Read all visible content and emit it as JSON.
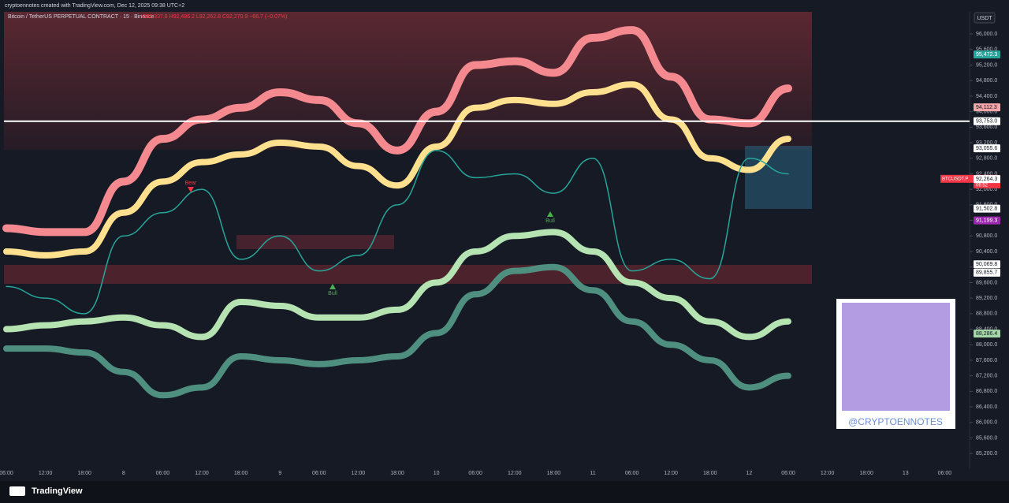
{
  "header": {
    "credit": "cryptoennotes created with TradingView.com, Dec 12, 2025 09:38 UTC+2",
    "symbol": "Bitcoin / TetherUS PERPETUAL CONTRACT · 15 · Binance",
    "ohlc": "O92,337.6 H92,486.2 L92,262.8 C92,270.9 −66.7 (−0.07%)",
    "currency": "USDT"
  },
  "footer": {
    "brand": "TradingView"
  },
  "qr": {
    "handle": "@CRYPTOENNOTES"
  },
  "chart_data": {
    "type": "line",
    "categories": [
      "06:00",
      "12:00",
      "18:00",
      "8",
      "06:00",
      "12:00",
      "18:00",
      "9",
      "06:00",
      "12:00",
      "18:00",
      "10",
      "06:00",
      "12:00",
      "18:00",
      "11",
      "06:00",
      "12:00",
      "18:00",
      "12",
      "06:00",
      "12:00",
      "18:00",
      "13",
      "06:00"
    ],
    "series": [
      {
        "color": "#f48a8f",
        "width": 10,
        "values": [
          91000,
          90900,
          90900,
          92200,
          93300,
          93800,
          94100,
          94500,
          94300,
          93700,
          93000,
          94000,
          95200,
          95300,
          95000,
          95900,
          96100,
          94900,
          93800,
          93700,
          94600,
          null,
          null,
          null,
          null
        ]
      },
      {
        "color": "#ffe08f",
        "width": 8,
        "values": [
          90400,
          90300,
          90400,
          91400,
          92200,
          92700,
          92900,
          93200,
          93100,
          92600,
          92100,
          93100,
          94100,
          94300,
          94200,
          94500,
          94700,
          93800,
          92800,
          92500,
          93300,
          null,
          null,
          null,
          null
        ]
      },
      {
        "color": "#b5e3b1",
        "width": 8,
        "values": [
          88400,
          88500,
          88600,
          88700,
          88500,
          88200,
          89100,
          89000,
          88700,
          88700,
          88900,
          89600,
          90400,
          90800,
          90900,
          90400,
          89600,
          89200,
          88600,
          88200,
          88600,
          null,
          null,
          null,
          null
        ]
      },
      {
        "color": "#4f8f80",
        "width": 8,
        "values": [
          87900,
          87900,
          87800,
          87300,
          86700,
          86900,
          87700,
          87600,
          87500,
          87600,
          87700,
          88300,
          89300,
          89900,
          90000,
          89400,
          88600,
          88000,
          87600,
          86900,
          87200,
          null,
          null,
          null,
          null
        ]
      },
      {
        "color": "#26a69a",
        "width": 1.5,
        "values": [
          89500,
          89200,
          88800,
          90800,
          91400,
          92000,
          90200,
          90800,
          89900,
          90300,
          91600,
          93000,
          92300,
          92400,
          91900,
          92800,
          89900,
          90200,
          89700,
          92800,
          92400,
          null,
          null,
          null,
          null
        ]
      }
    ],
    "ylim": [
      84900,
      96570
    ],
    "yticks": [
      {
        "value": 85200,
        "label": "85,200.0"
      },
      {
        "value": 85600,
        "label": "85,600.0"
      },
      {
        "value": 86000,
        "label": "86,000.0"
      },
      {
        "value": 86400,
        "label": "86,400.0"
      },
      {
        "value": 86800,
        "label": "86,800.0"
      },
      {
        "value": 87200,
        "label": "87,200.0"
      },
      {
        "value": 87600,
        "label": "87,600.0"
      },
      {
        "value": 88000,
        "label": "88,000.0"
      },
      {
        "value": 88400,
        "label": "88,400.0"
      },
      {
        "value": 88800,
        "label": "88,800.0"
      },
      {
        "value": 89200,
        "label": "89,200.0"
      },
      {
        "value": 89600,
        "label": "89,600.0"
      },
      {
        "value": 90000,
        "label": "90,000.0"
      },
      {
        "value": 90400,
        "label": "90,400.0"
      },
      {
        "value": 90800,
        "label": "90,800.0"
      },
      {
        "value": 91200,
        "label": "91,200.0"
      },
      {
        "value": 91600,
        "label": "91,600.0"
      },
      {
        "value": 92000,
        "label": "92,000.0"
      },
      {
        "value": 92400,
        "label": "92,400.0"
      },
      {
        "value": 92800,
        "label": "92,800.0"
      },
      {
        "value": 93200,
        "label": "93,200.0"
      },
      {
        "value": 93600,
        "label": "93,600.0"
      },
      {
        "value": 94000,
        "label": "94,000.0"
      },
      {
        "value": 94400,
        "label": "94,400.0"
      },
      {
        "value": 94800,
        "label": "94,800.0"
      },
      {
        "value": 95200,
        "label": "95,200.0"
      },
      {
        "value": 95600,
        "label": "95,600.0"
      },
      {
        "value": 96000,
        "label": "96,000.0"
      }
    ],
    "hline": {
      "value": 93753,
      "color": "#ffffff"
    },
    "price_tags": [
      {
        "value": 95472.3,
        "label": "95,472.3",
        "color": "#26a69a"
      },
      {
        "value": 94112.3,
        "label": "94,112.3",
        "color": "#f4a6a8"
      },
      {
        "value": 93753,
        "label": "93,753.0",
        "color": "#ffffff"
      },
      {
        "value": 93055.6,
        "label": "93,055.6",
        "color": "#ffffff"
      },
      {
        "value": 92270.9,
        "label": "92,270.9",
        "color": "#f23645"
      },
      {
        "value": 92264.3,
        "label": "92,264.3",
        "color": "#ffffff"
      },
      {
        "value": 91502.8,
        "label": "91,502.8",
        "color": "#ffffff"
      },
      {
        "value": 91199.3,
        "label": "91,199.3",
        "color": "#9c27b0"
      },
      {
        "value": 90069.8,
        "label": "90,069.8",
        "color": "#ffffff"
      },
      {
        "value": 89855.7,
        "label": "89,855.7",
        "color": "#ffffff"
      },
      {
        "value": 88286.4,
        "label": "88,286.4",
        "color": "#a5d6a7"
      }
    ],
    "last_symbol": "BTCUSDT.P",
    "last_timer": "06:52",
    "annotations": [
      "Bear",
      "Bull",
      "Bull"
    ],
    "grid": false
  }
}
